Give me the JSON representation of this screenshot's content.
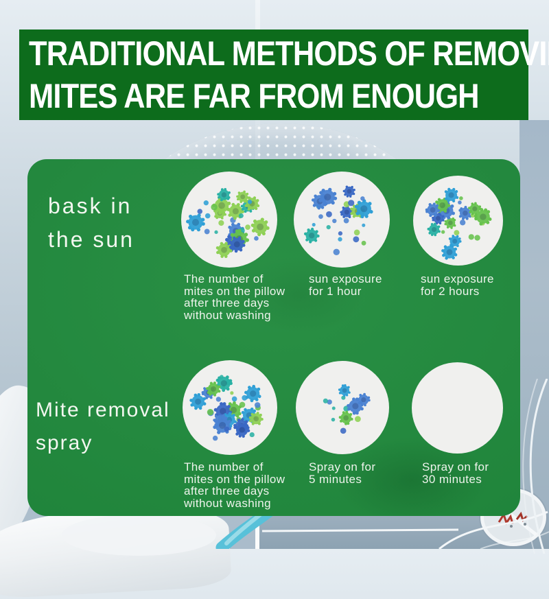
{
  "banner": {
    "line1": "TRADITIONAL METHODS OF REMOVING",
    "line2": "MITES ARE FAR FROM ENOUGH"
  },
  "panel": {
    "rows": [
      {
        "label": "bask in\nthe sun",
        "circles": [
          {
            "caption": "The number of\nmites on the pillow\nafter three days\nwithout washing",
            "mite_count": 27
          },
          {
            "caption": "sun exposure\nfor 1 hour",
            "mite_count": 24
          },
          {
            "caption": "sun exposure\nfor 2 hours",
            "mite_count": 21
          }
        ]
      },
      {
        "label": "Mite removal\nspray",
        "circles": [
          {
            "caption": "The number of\nmites on the pillow\nafter three days\nwithout washing",
            "mite_count": 30
          },
          {
            "caption": "Spray on for\n5 minutes",
            "mite_count": 12
          },
          {
            "caption": "Spray on for\n30 minutes",
            "mite_count": 0
          }
        ]
      }
    ]
  },
  "colors": {
    "banner_green": "#0d6c1c",
    "panel_green": "#1e8a3b",
    "dish_fill": "#f0f0ee",
    "spray_swirl": "#58c1d9",
    "mite_palette": [
      "#4a82d2",
      "#3a68c4",
      "#29b1a4",
      "#66c24d",
      "#8ed054",
      "#2f9fd6"
    ]
  }
}
